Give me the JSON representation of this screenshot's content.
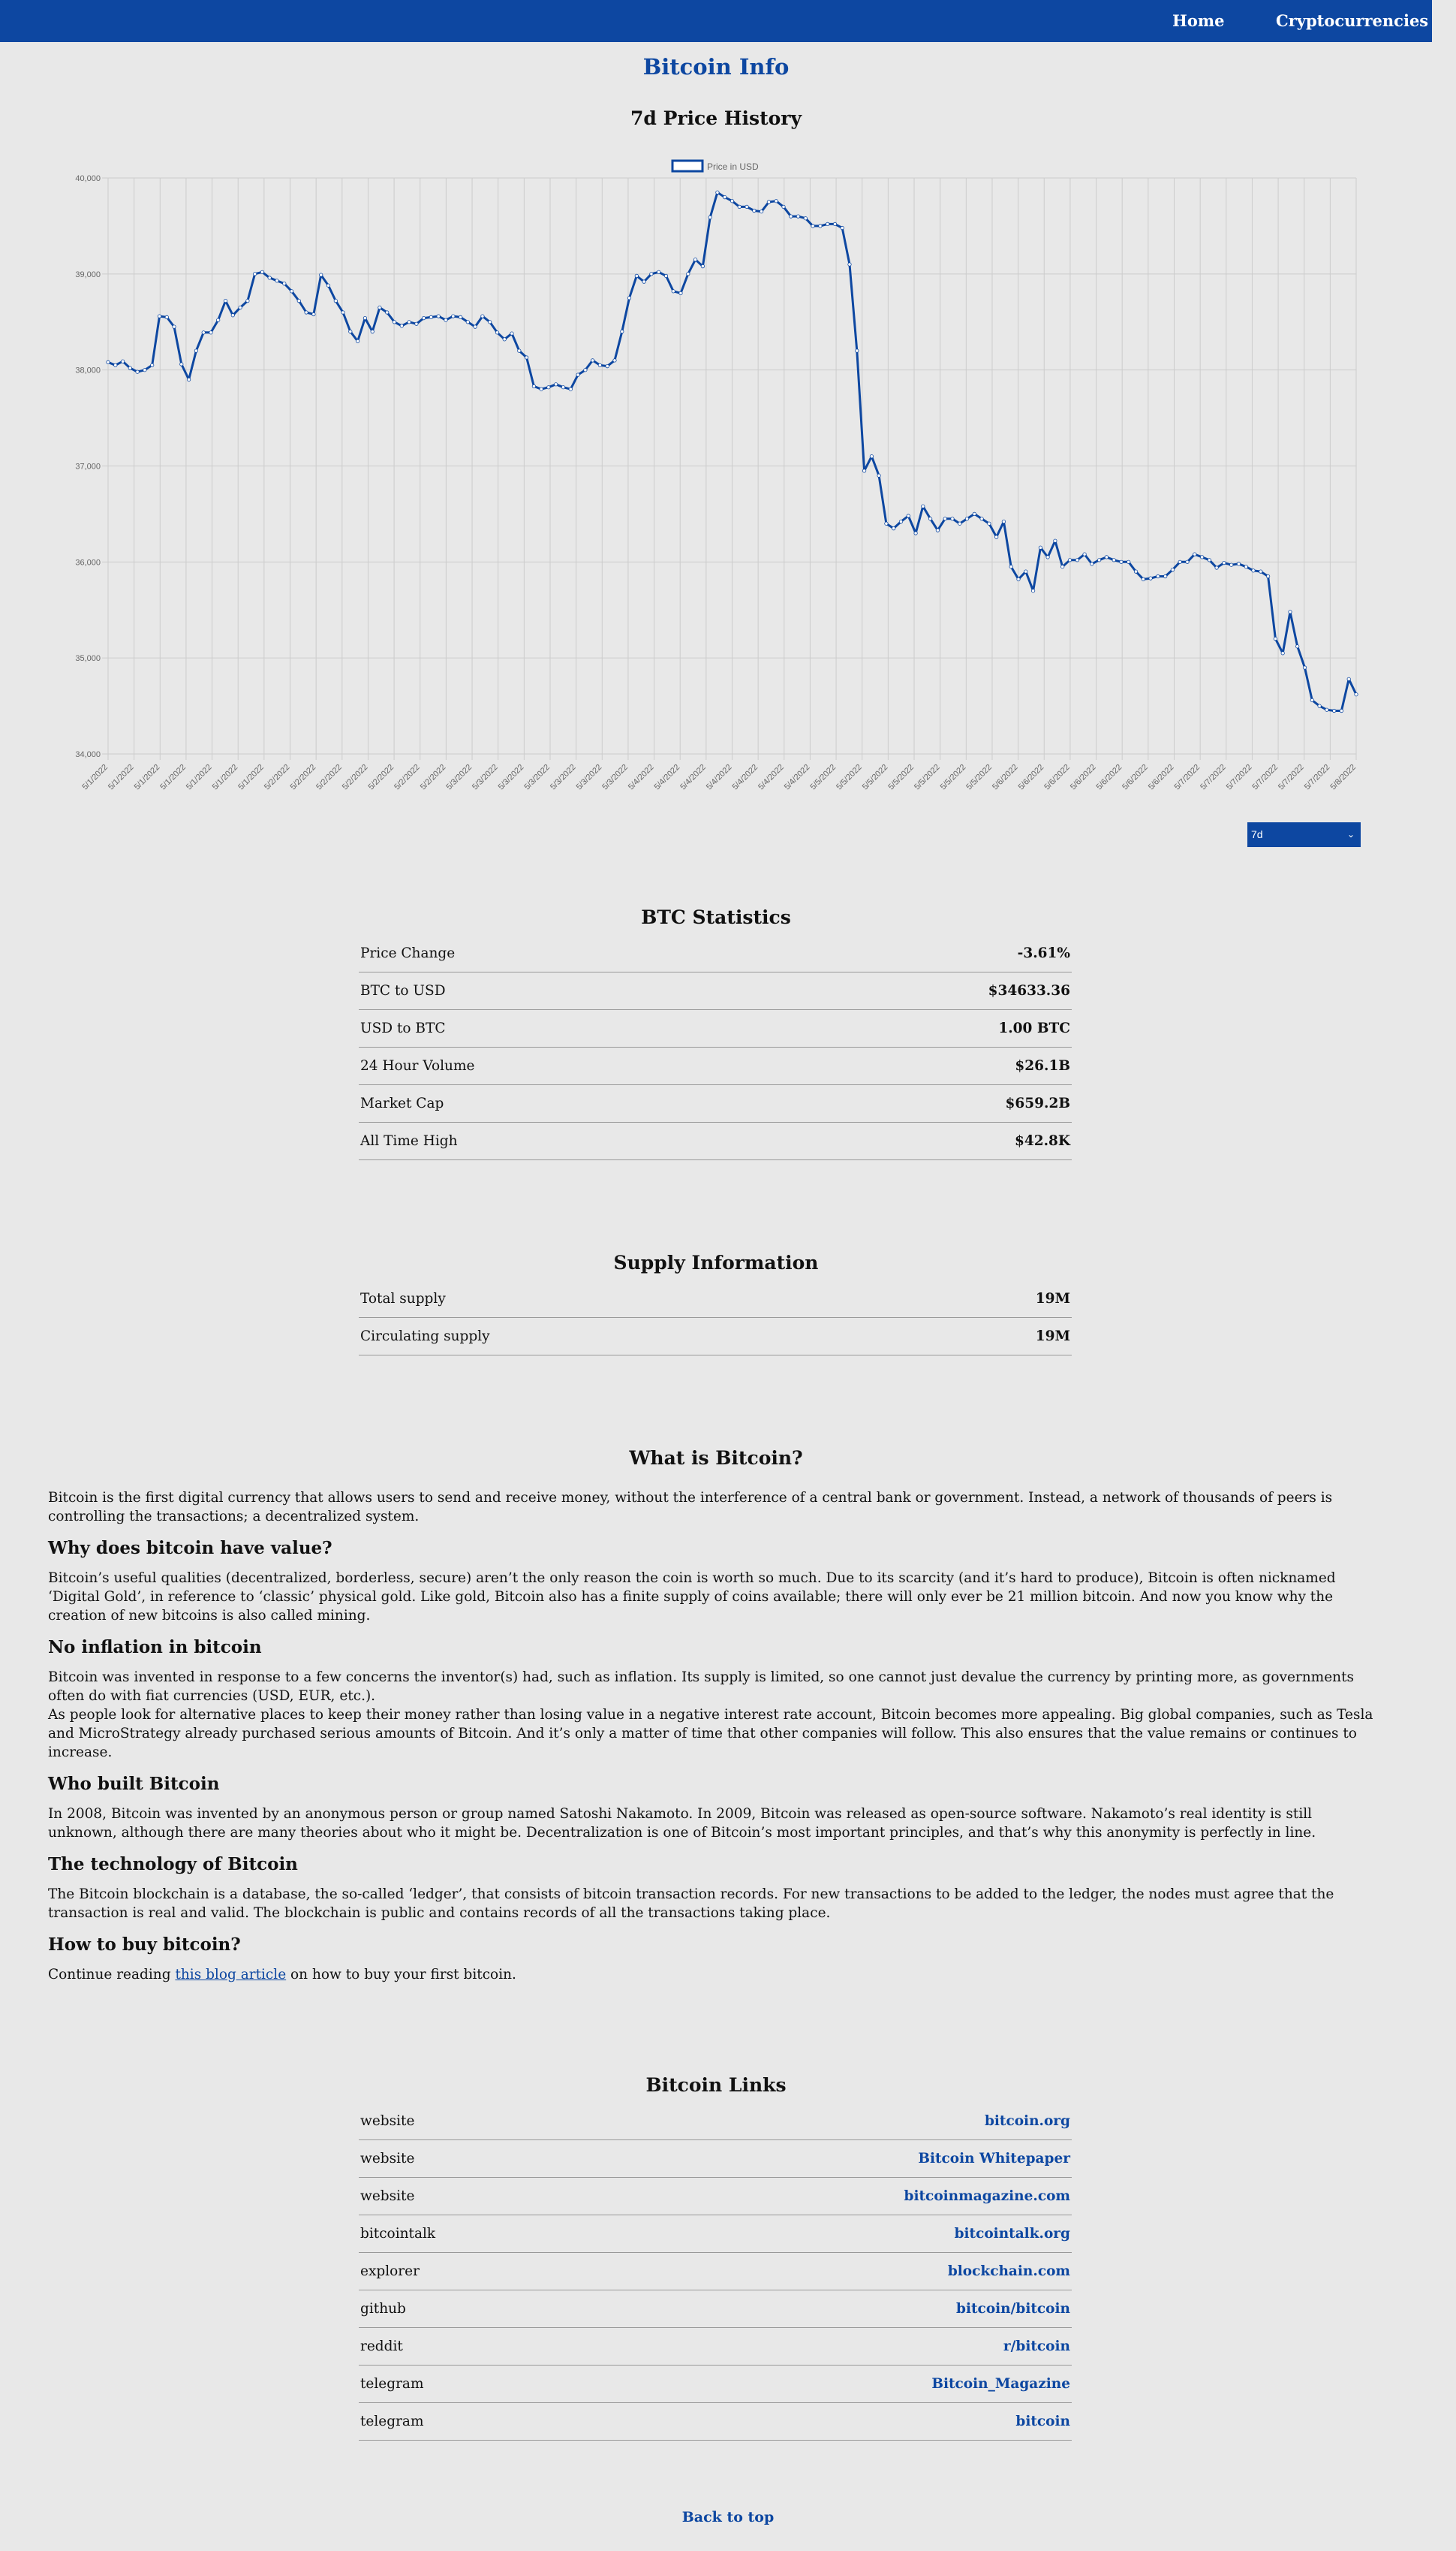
{
  "nav": {
    "home": "Home",
    "cryptocurrencies": "Cryptocurrencies"
  },
  "page_title": "Bitcoin Info",
  "chart_section_title": "7d Price History",
  "chart_data": {
    "type": "line",
    "legend": "Price in USD",
    "legend_position": "top",
    "ylim": [
      34000,
      40000
    ],
    "y_ticks": [
      "34,000",
      "35,000",
      "36,000",
      "37,000",
      "38,000",
      "39,000",
      "40,000"
    ],
    "x_tick_labels": [
      "5/1/2022",
      "5/1/2022",
      "5/1/2022",
      "5/1/2022",
      "5/1/2022",
      "5/1/2022",
      "5/1/2022",
      "5/2/2022",
      "5/2/2022",
      "5/2/2022",
      "5/2/2022",
      "5/2/2022",
      "5/2/2022",
      "5/2/2022",
      "5/3/2022",
      "5/3/2022",
      "5/3/2022",
      "5/3/2022",
      "5/3/2022",
      "5/3/2022",
      "5/3/2022",
      "5/4/2022",
      "5/4/2022",
      "5/4/2022",
      "5/4/2022",
      "5/4/2022",
      "5/4/2022",
      "5/4/2022",
      "5/5/2022",
      "5/5/2022",
      "5/5/2022",
      "5/5/2022",
      "5/5/2022",
      "5/5/2022",
      "5/5/2022",
      "5/6/2022",
      "5/6/2022",
      "5/6/2022",
      "5/6/2022",
      "5/6/2022",
      "5/6/2022",
      "5/6/2022",
      "5/7/2022",
      "5/7/2022",
      "5/7/2022",
      "5/7/2022",
      "5/7/2022",
      "5/7/2022",
      "5/8/2022"
    ],
    "grid": true,
    "series": [
      {
        "name": "Price in USD",
        "color": "#0d47a1",
        "values": [
          38080,
          38050,
          38090,
          38020,
          37980,
          38000,
          38050,
          38560,
          38550,
          38450,
          38060,
          37900,
          38200,
          38390,
          38390,
          38520,
          38720,
          38570,
          38650,
          38720,
          39000,
          39020,
          38960,
          38930,
          38900,
          38820,
          38720,
          38600,
          38580,
          38990,
          38880,
          38720,
          38600,
          38400,
          38300,
          38540,
          38400,
          38650,
          38600,
          38500,
          38460,
          38500,
          38480,
          38540,
          38550,
          38560,
          38520,
          38560,
          38550,
          38500,
          38450,
          38560,
          38500,
          38390,
          38320,
          38380,
          38200,
          38130,
          37830,
          37800,
          37820,
          37850,
          37820,
          37800,
          37950,
          38000,
          38100,
          38050,
          38040,
          38100,
          38400,
          38750,
          38980,
          38920,
          39000,
          39020,
          38980,
          38820,
          38800,
          39000,
          39150,
          39080,
          39590,
          39850,
          39800,
          39760,
          39700,
          39700,
          39660,
          39650,
          39750,
          39760,
          39700,
          39600,
          39600,
          39580,
          39500,
          39500,
          39520,
          39520,
          39480,
          39100,
          38200,
          36950,
          37100,
          36900,
          36400,
          36350,
          36420,
          36480,
          36300,
          36580,
          36450,
          36330,
          36450,
          36450,
          36400,
          36450,
          36500,
          36450,
          36400,
          36260,
          36420,
          35950,
          35820,
          35900,
          35700,
          36150,
          36050,
          36220,
          35950,
          36020,
          36020,
          36080,
          35980,
          36020,
          36050,
          36020,
          36000,
          36000,
          35900,
          35820,
          35830,
          35850,
          35850,
          35920,
          36000,
          36000,
          36080,
          36050,
          36020,
          35940,
          35990,
          35970,
          35980,
          35950,
          35910,
          35900,
          35850,
          35200,
          35050,
          35480,
          35120,
          34900,
          34560,
          34500,
          34460,
          34450,
          34450,
          34780,
          34620
        ]
      }
    ]
  },
  "timeframe_select": {
    "value": "7d"
  },
  "stats": {
    "title": "BTC Statistics",
    "rows": [
      {
        "label": "Price Change",
        "value": "-3.61%"
      },
      {
        "label": "BTC to USD",
        "value": "$34633.36"
      },
      {
        "label": "USD to BTC",
        "value": "1.00 BTC"
      },
      {
        "label": "24 Hour Volume",
        "value": "$26.1B"
      },
      {
        "label": "Market Cap",
        "value": "$659.2B"
      },
      {
        "label": "All Time High",
        "value": "$42.8K"
      }
    ]
  },
  "supply": {
    "title": "Supply Information",
    "rows": [
      {
        "label": "Total supply",
        "value": "19M"
      },
      {
        "label": "Circulating supply",
        "value": "19M"
      }
    ]
  },
  "about": {
    "title": "What is Bitcoin?",
    "intro": "Bitcoin is the first digital currency that allows users to send and receive money, without the interference of a central bank or government. Instead, a network of thousands of peers is controlling the transactions; a decentralized system.",
    "value_heading": "Why does bitcoin have value?",
    "value_text": "Bitcoin’s useful qualities (decentralized, borderless, secure) aren’t the only reason the coin is worth so much. Due to its scarcity (and it’s hard to produce), Bitcoin is often nicknamed ‘Digital Gold’, in reference to ‘classic’ physical gold. Like gold, Bitcoin also has a finite supply of coins available; there will only ever be 21 million bitcoin. And now you know why the creation of new bitcoins is also called mining.",
    "inflation_heading": "No inflation in bitcoin",
    "inflation_text_1": "Bitcoin was invented in response to a few concerns the inventor(s) had, such as inflation. Its supply is limited, so one cannot just devalue the currency by printing more, as governments often do with fiat currencies (USD, EUR, etc.).",
    "inflation_text_2": "As people look for alternative places to keep their money rather than losing value in a negative interest rate account, Bitcoin becomes more appealing. Big global companies, such as Tesla and MicroStrategy already purchased serious amounts of Bitcoin. And it’s only a matter of time that other companies will follow. This also ensures that the value remains or continues to increase.",
    "builder_heading": "Who built Bitcoin",
    "builder_text": "In 2008, Bitcoin was invented by an anonymous person or group named Satoshi Nakamoto. In 2009, Bitcoin was released as open-source software. Nakamoto’s real identity is still unknown, although there are many theories about who it might be. Decentralization is one of Bitcoin’s most important principles, and that’s why this anonymity is perfectly in line.",
    "tech_heading": "The technology of Bitcoin",
    "tech_text": "The Bitcoin blockchain is a database, the so-called ‘ledger’, that consists of bitcoin transaction records. For new transactions to be added to the ledger, the nodes must agree that the transaction is real and valid. The blockchain is public and contains records of all the transactions taking place.",
    "buy_heading": "How to buy bitcoin?",
    "buy_prefix": "Continue reading ",
    "buy_link": "this blog article",
    "buy_suffix": " on how to buy your first bitcoin."
  },
  "links": {
    "title": "Bitcoin Links",
    "rows": [
      {
        "label": "website",
        "value": "bitcoin.org"
      },
      {
        "label": "website",
        "value": "Bitcoin Whitepaper"
      },
      {
        "label": "website",
        "value": "bitcoinmagazine.com"
      },
      {
        "label": "bitcointalk",
        "value": "bitcointalk.org"
      },
      {
        "label": "explorer",
        "value": "blockchain.com"
      },
      {
        "label": "github",
        "value": "bitcoin/bitcoin"
      },
      {
        "label": "reddit",
        "value": "r/bitcoin"
      },
      {
        "label": "telegram",
        "value": "Bitcoin_Magazine"
      },
      {
        "label": "telegram",
        "value": "bitcoin"
      }
    ]
  },
  "back_to_top": "Back to top"
}
